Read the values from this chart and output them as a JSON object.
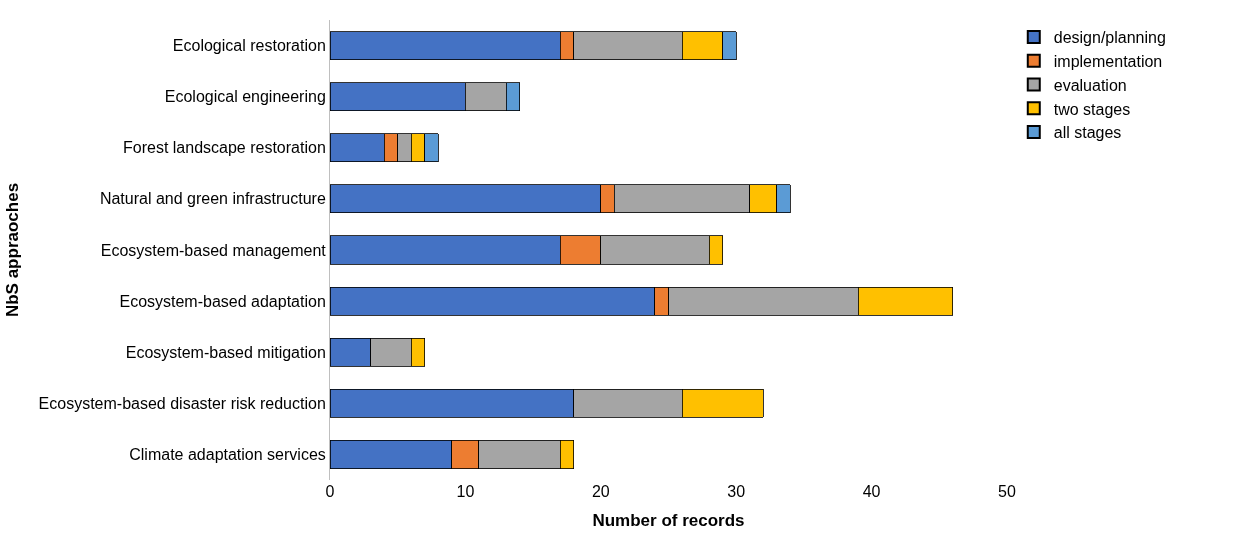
{
  "chart_data": {
    "type": "bar",
    "orientation": "horizontal",
    "stacked": true,
    "xlabel": "Number of records",
    "ylabel": "NbS appraoches",
    "categories": [
      "Ecological restoration",
      "Ecological engineering",
      "Forest landscape restoration",
      "Natural and green infrastructure",
      "Ecosystem-based management",
      "Ecosystem-based adaptation",
      "Ecosystem-based mitigation",
      "Ecosystem-based disaster risk reduction",
      "Climate adaptation services"
    ],
    "series": [
      {
        "name": "design/planning",
        "color": "#4472c4",
        "values": [
          17,
          10,
          4,
          20,
          17,
          24,
          3,
          18,
          9
        ]
      },
      {
        "name": "implementation",
        "color": "#ed7d31",
        "values": [
          1,
          null,
          1,
          1,
          3,
          1,
          null,
          null,
          2
        ]
      },
      {
        "name": "evaluation",
        "color": "#a5a5a5",
        "values": [
          8,
          3,
          1,
          10,
          8,
          14,
          3,
          8,
          6
        ]
      },
      {
        "name": "two stages",
        "color": "#ffc000",
        "values": [
          3,
          null,
          1,
          2,
          1,
          7,
          1,
          6,
          1
        ]
      },
      {
        "name": "all stages",
        "color": "#5b9bd5",
        "values": [
          1,
          1,
          1,
          1,
          null,
          null,
          null,
          null,
          null
        ]
      }
    ],
    "xlim": [
      0,
      50
    ],
    "xticks": [
      0,
      10,
      20,
      30,
      40,
      50
    ],
    "legend": "top right"
  }
}
